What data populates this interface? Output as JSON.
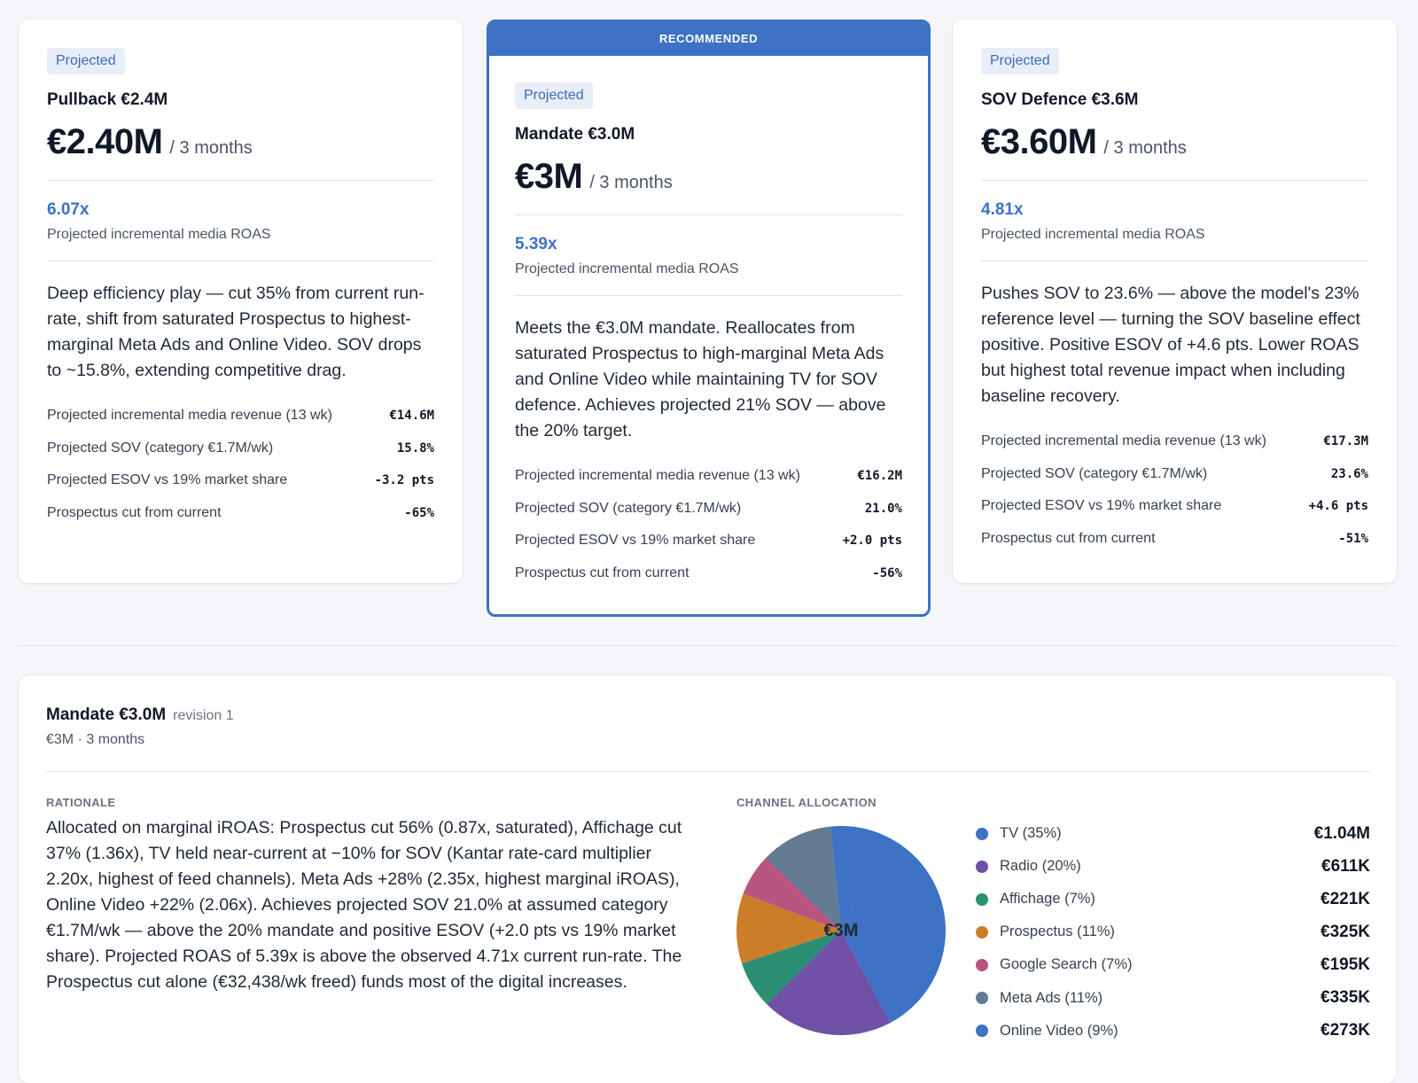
{
  "cards": [
    {
      "badge": "Projected",
      "title": "Pullback €2.4M",
      "amount": "€2.40M",
      "period": "/ 3 months",
      "roas": "6.07x",
      "roas_label": "Projected incremental media ROAS",
      "description": "Deep efficiency play — cut 35% from current run-rate, shift from saturated Prospectus to highest-marginal Meta Ads and Online Video. SOV drops to ~15.8%, extending competitive drag.",
      "metrics": [
        {
          "label": "Projected incremental media revenue (13 wk)",
          "value": "€14.6M"
        },
        {
          "label": "Projected SOV (category €1.7M/wk)",
          "value": "15.8%"
        },
        {
          "label": "Projected ESOV vs 19% market share",
          "value": "-3.2 pts"
        },
        {
          "label": "Prospectus cut from current",
          "value": "-65%"
        }
      ]
    },
    {
      "ribbon": "RECOMMENDED",
      "badge": "Projected",
      "title": "Mandate €3.0M",
      "amount": "€3M",
      "period": "/ 3 months",
      "roas": "5.39x",
      "roas_label": "Projected incremental media ROAS",
      "description": "Meets the €3.0M mandate. Reallocates from saturated Prospectus to high-marginal Meta Ads and Online Video while maintaining TV for SOV defence. Achieves projected 21% SOV — above the 20% target.",
      "metrics": [
        {
          "label": "Projected incremental media revenue (13 wk)",
          "value": "€16.2M"
        },
        {
          "label": "Projected SOV (category €1.7M/wk)",
          "value": "21.0%"
        },
        {
          "label": "Projected ESOV vs 19% market share",
          "value": "+2.0 pts"
        },
        {
          "label": "Prospectus cut from current",
          "value": "-56%"
        }
      ]
    },
    {
      "badge": "Projected",
      "title": "SOV Defence €3.6M",
      "amount": "€3.60M",
      "period": "/ 3 months",
      "roas": "4.81x",
      "roas_label": "Projected incremental media ROAS",
      "description": "Pushes SOV to 23.6% — above the model's 23% reference level — turning the SOV baseline effect positive. Positive ESOV of +4.6 pts. Lower ROAS but highest total revenue impact when including baseline recovery.",
      "metrics": [
        {
          "label": "Projected incremental media revenue (13 wk)",
          "value": "€17.3M"
        },
        {
          "label": "Projected SOV (category €1.7M/wk)",
          "value": "23.6%"
        },
        {
          "label": "Projected ESOV vs 19% market share",
          "value": "+4.6 pts"
        },
        {
          "label": "Prospectus cut from current",
          "value": "-51%"
        }
      ]
    }
  ],
  "detail": {
    "title": "Mandate €3.0M",
    "revision": "revision 1",
    "subtitle": "€3M · 3 months",
    "rationale_label": "RATIONALE",
    "rationale": "Allocated on marginal iROAS: Prospectus cut 56% (0.87x, saturated), Affichage cut 37% (1.36x), TV held near-current at −10% for SOV (Kantar rate-card multiplier 2.20x, highest of feed channels). Meta Ads +28% (2.35x, highest marginal iROAS), Online Video +22% (2.06x). Achieves projected SOV 21.0% at assumed category €1.7M/wk — above the 20% mandate and positive ESOV (+2.0 pts vs 19% market share). Projected ROAS of 5.39x is above the observed 4.71x current run-rate. The Prospectus cut alone (€32,438/wk freed) funds most of the digital increases.",
    "allocation_label": "CHANNEL ALLOCATION",
    "pie_center": "€3M"
  },
  "chart_data": {
    "type": "pie",
    "slices": [
      {
        "label": "TV (35%)",
        "value": 1.04,
        "display": "€1.04M",
        "color": "#3d72c4"
      },
      {
        "label": "Radio (20%)",
        "value": 0.611,
        "display": "€611K",
        "color": "#6f50a6"
      },
      {
        "label": "Affichage (7%)",
        "value": 0.221,
        "display": "€221K",
        "color": "#2b8f74"
      },
      {
        "label": "Prospectus (11%)",
        "value": 0.325,
        "display": "€325K",
        "color": "#cc7d2a"
      },
      {
        "label": "Google Search (7%)",
        "value": 0.195,
        "display": "€195K",
        "color": "#b8557f"
      },
      {
        "label": "Meta Ads (11%)",
        "value": 0.335,
        "display": "€335K",
        "color": "#627b91"
      },
      {
        "label": "Online Video (9%)",
        "value": 0.273,
        "display": "€273K",
        "color": "#3d72c4"
      }
    ]
  }
}
